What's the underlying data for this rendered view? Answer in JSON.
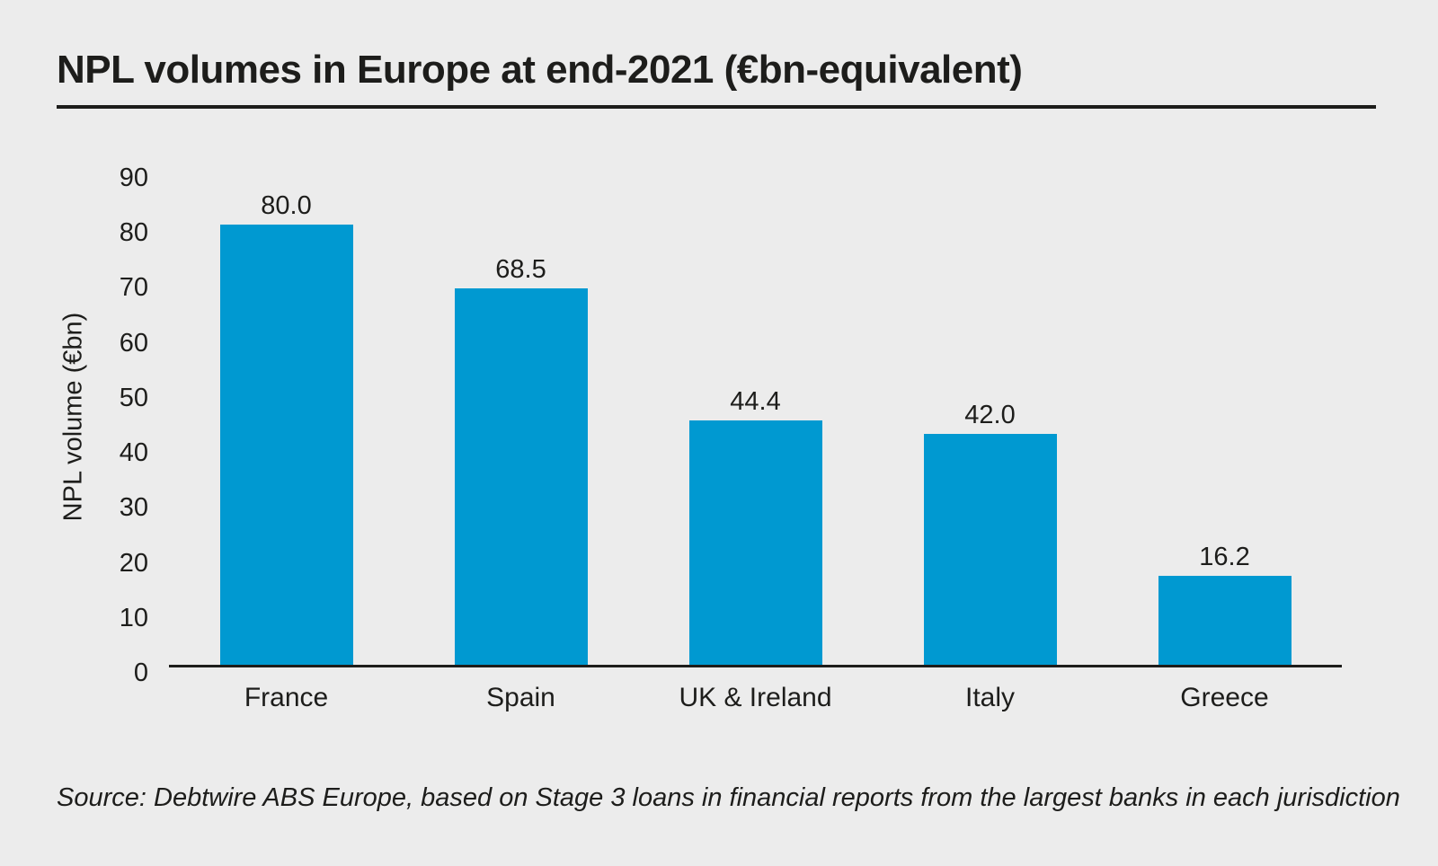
{
  "page": {
    "background_color": "#ececec",
    "text_color": "#1d1d1b",
    "axis_color": "#1d1d1b"
  },
  "title": "NPL volumes in Europe at end-2021 (€bn-equivalent)",
  "source_note": "Source: Debtwire ABS Europe, based on Stage 3 loans in financial reports from the largest banks in each jurisdiction",
  "chart_data": {
    "type": "bar",
    "title": "NPL volumes in Europe at end-2021 (€bn-equivalent)",
    "categories": [
      "France",
      "Spain",
      "UK & Ireland",
      "Italy",
      "Greece"
    ],
    "values": [
      80.0,
      68.5,
      44.4,
      42.0,
      16.2
    ],
    "value_labels": [
      "80.0",
      "68.5",
      "44.4",
      "42.0",
      "16.2"
    ],
    "xlabel": "",
    "ylabel": "NPL volume (€bn)",
    "ylim": [
      0,
      90
    ],
    "yticks": [
      0,
      10,
      20,
      30,
      40,
      50,
      60,
      70,
      80,
      90
    ],
    "grid": false,
    "legend_position": "none",
    "bar_color": "#0099d1",
    "source": "Source: Debtwire ABS Europe, based on Stage 3 loans in financial reports from the largest banks in each jurisdiction"
  }
}
